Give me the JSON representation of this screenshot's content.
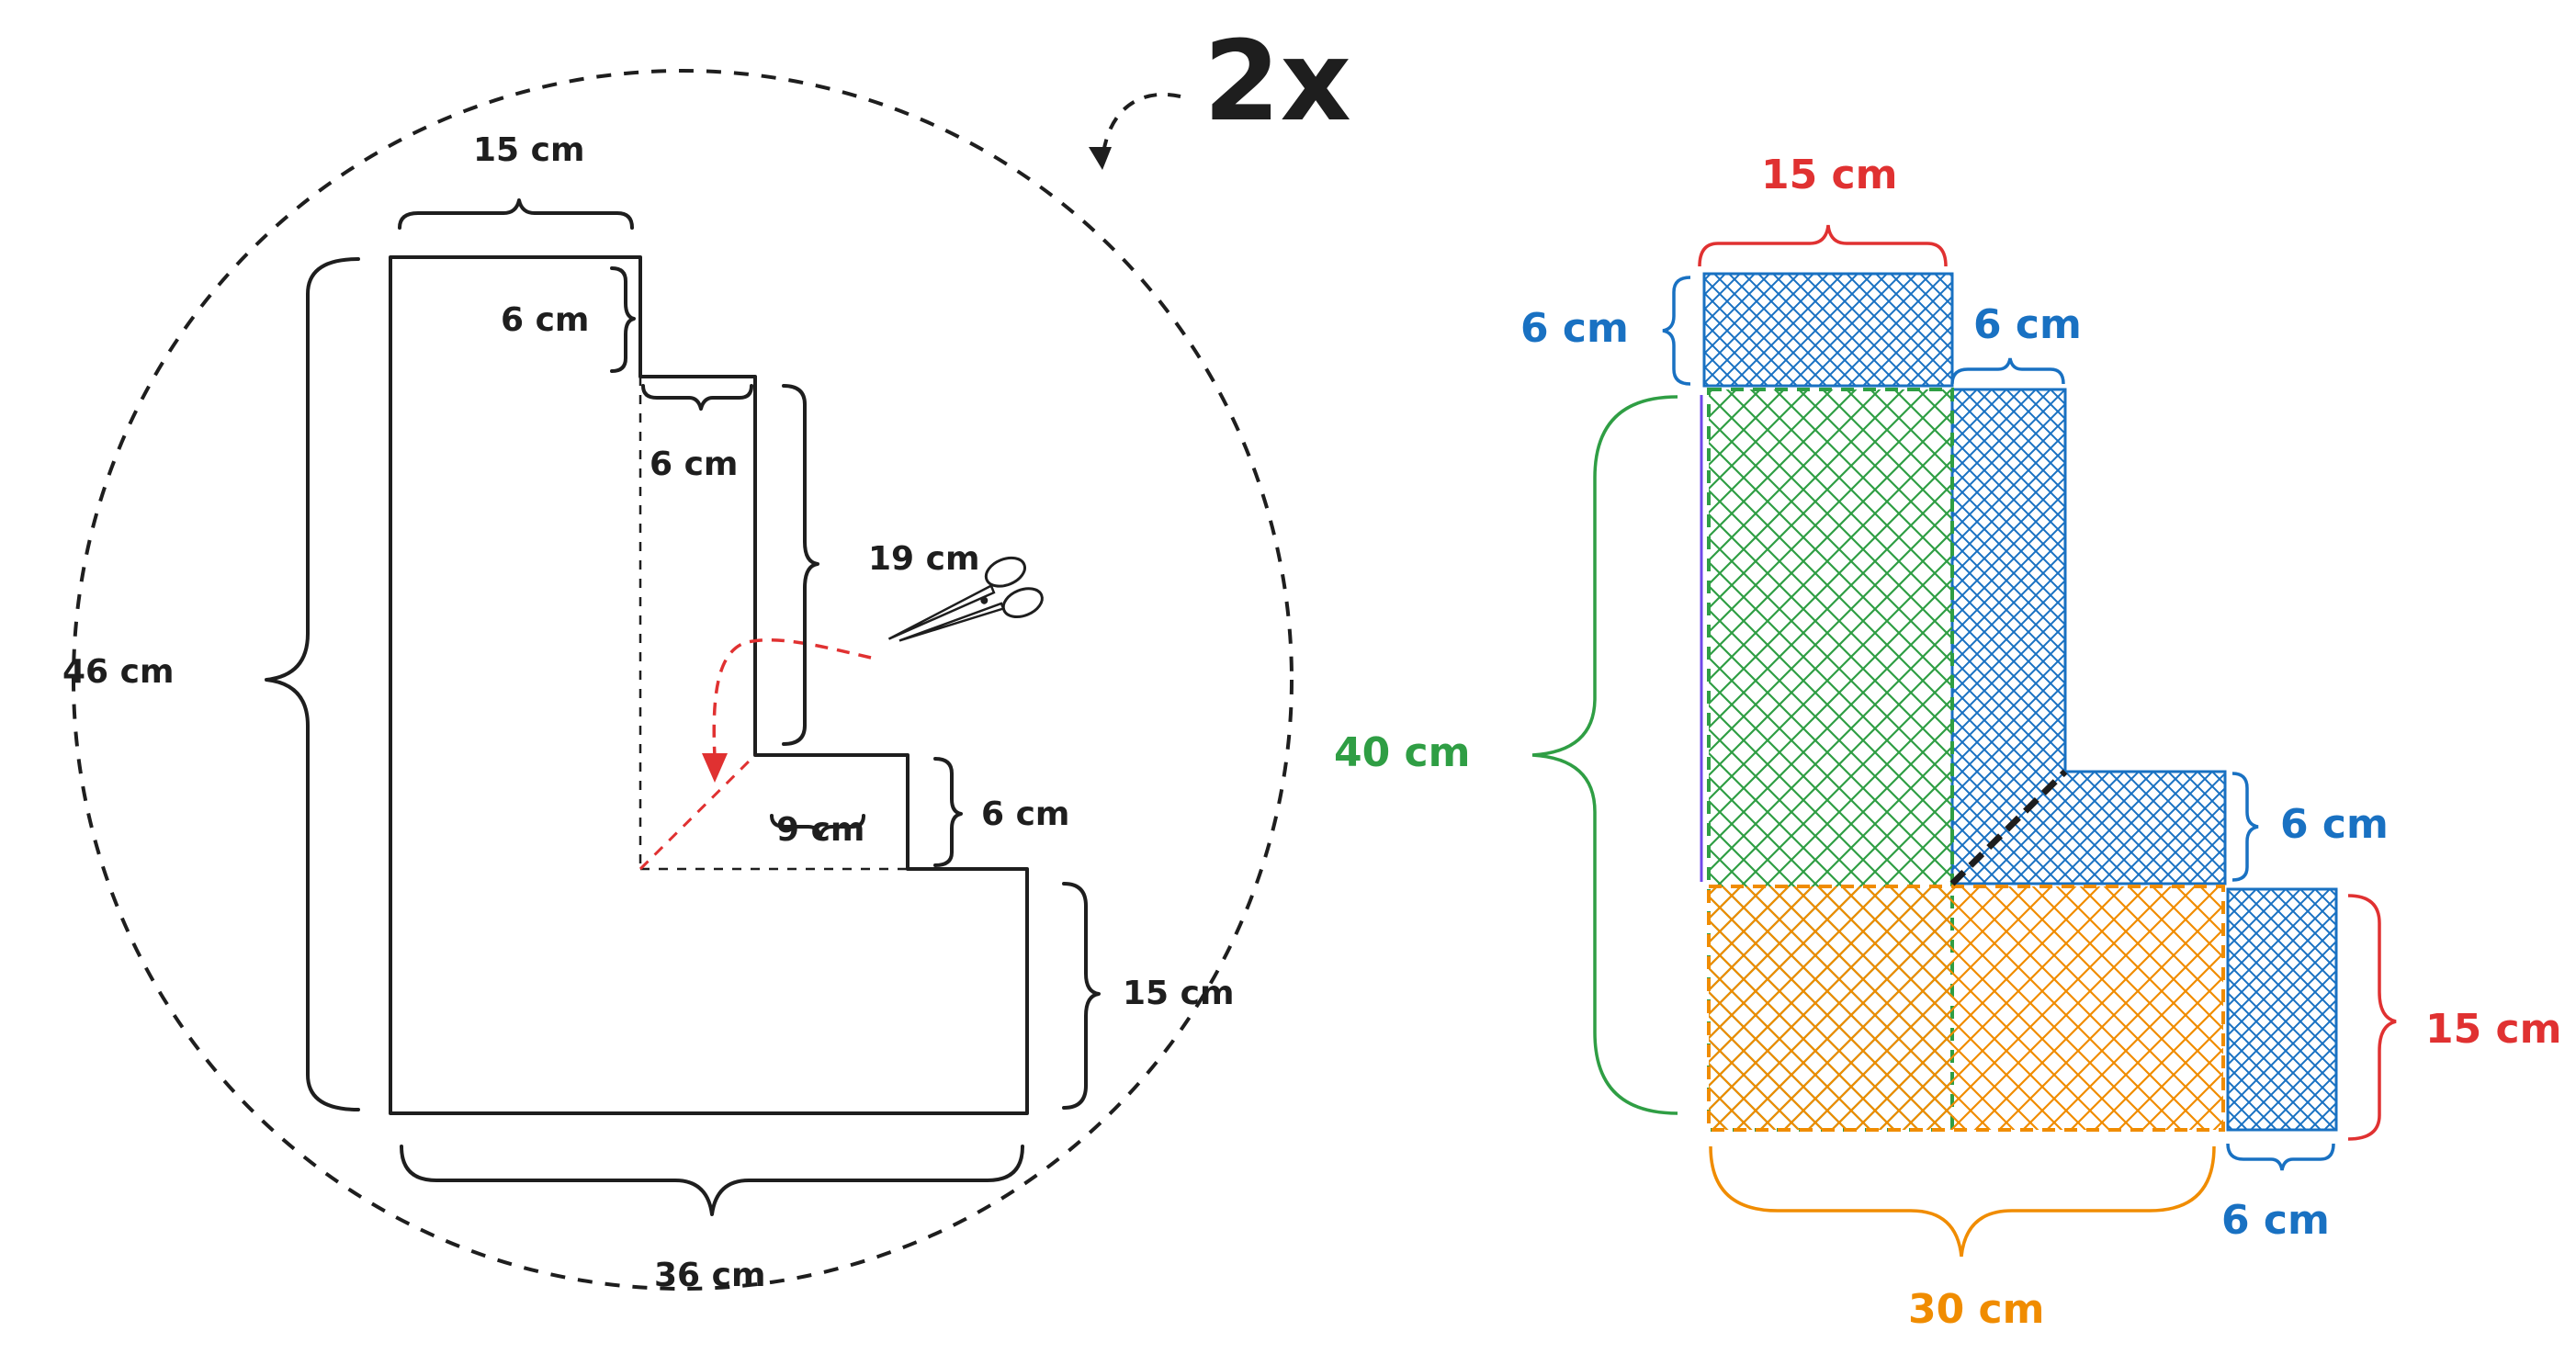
{
  "left_figure": {
    "multiplier": "2x",
    "labels": {
      "top_width": "15 cm",
      "step_top": "6 cm",
      "step_mid_width": "6 cm",
      "right_upper": "19 cm",
      "step_lower_height": "6 cm",
      "step_lower_width": "9 cm",
      "right_bottom": "15 cm",
      "left_height": "46 cm",
      "bottom_width": "36 cm"
    }
  },
  "right_figure": {
    "labels": {
      "top_red": "15 cm",
      "top_blue_left": "6 cm",
      "top_blue_right": "6 cm",
      "green_height": "40 cm",
      "blue_right_mid": "6 cm",
      "red_right": "15 cm",
      "blue_bottom": "6 cm",
      "orange_bottom": "30 cm"
    }
  },
  "colors": {
    "ink": "#1e1e1e",
    "red": "#e03131",
    "blue": "#1971c2",
    "green": "#2f9e44",
    "orange": "#f08c00"
  }
}
